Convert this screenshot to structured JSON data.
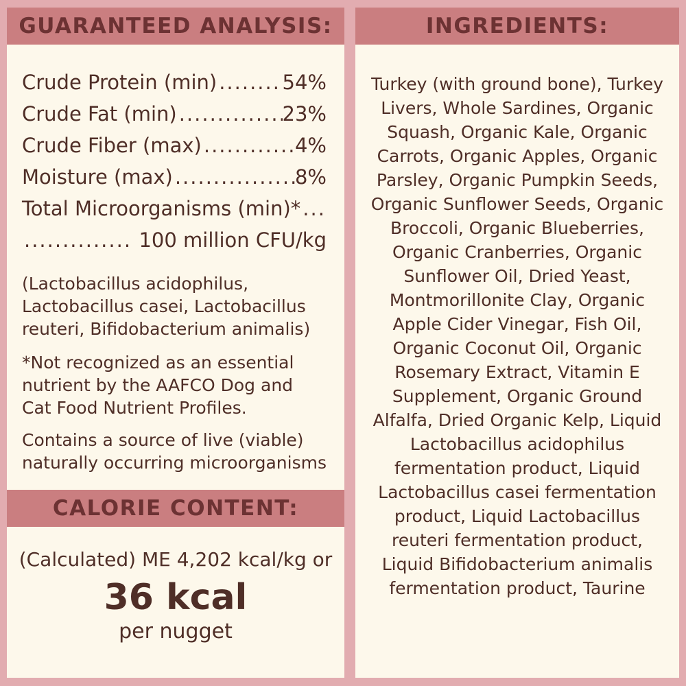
{
  "colors": {
    "background": "#e2acb0",
    "band": "#ca7e80",
    "panel": "#fdf8eb",
    "heading_text": "#6c3233",
    "body_text": "#4f2e27"
  },
  "left_panel": {
    "header": "GUARANTEED ANALYSIS:",
    "analysis_rows": [
      {
        "label": "Crude Protein (min)",
        "leader": "........................................",
        "value": "54%"
      },
      {
        "label": "Crude Fat (min)",
        "leader": "........................................",
        "value": "23%"
      },
      {
        "label": "Crude Fiber (max)",
        "leader": "........................................",
        "value": "4%"
      },
      {
        "label": "Moisture (max)",
        "leader": "........................................",
        "value": "8%"
      }
    ],
    "microorganisms": {
      "label": "Total Microorganisms (min)*",
      "leader1": "........................................",
      "leader2": "..............",
      "value": "100 million CFU/kg"
    },
    "species_note": "(Lactobacillus acidophilus, Lactobacillus casei, Lactobacillus reuteri, Bifidobacterium animalis)",
    "aafco_note": "*Not recognized as an essential nutrient by the AAFCO Dog and Cat Food Nutrient Profiles.",
    "live_note": "Contains a source of live (viable) naturally occurring microorganisms",
    "calorie_header": "CALORIE CONTENT:",
    "calorie_line1": "(Calculated) ME 4,202 kcal/kg or",
    "calorie_value": "36 kcal",
    "calorie_unit": "per nugget"
  },
  "right_panel": {
    "header": "INGREDIENTS:",
    "ingredients": "Turkey (with ground bone), Turkey Livers, Whole Sardines, Organic Squash, Organic Kale, Organic Carrots, Organic Apples, Organic Parsley, Organic Pumpkin Seeds, Organic Sunflower Seeds, Organic Broccoli, Organic Blueberries, Organic Cranberries, Organic Sunflower Oil, Dried Yeast, Montmorillonite Clay, Organic Apple Cider Vinegar, Fish Oil, Organic Coconut Oil, Organic Rosemary Extract, Vitamin E Supplement, Organic Ground Alfalfa, Dried Organic Kelp, Liquid Lactobacillus acidophilus fermentation product, Liquid Lactobacillus casei fermentation product, Liquid Lactobacillus reuteri fermentation product, Liquid Bifidobacterium animalis fermentation product, Taurine"
  }
}
